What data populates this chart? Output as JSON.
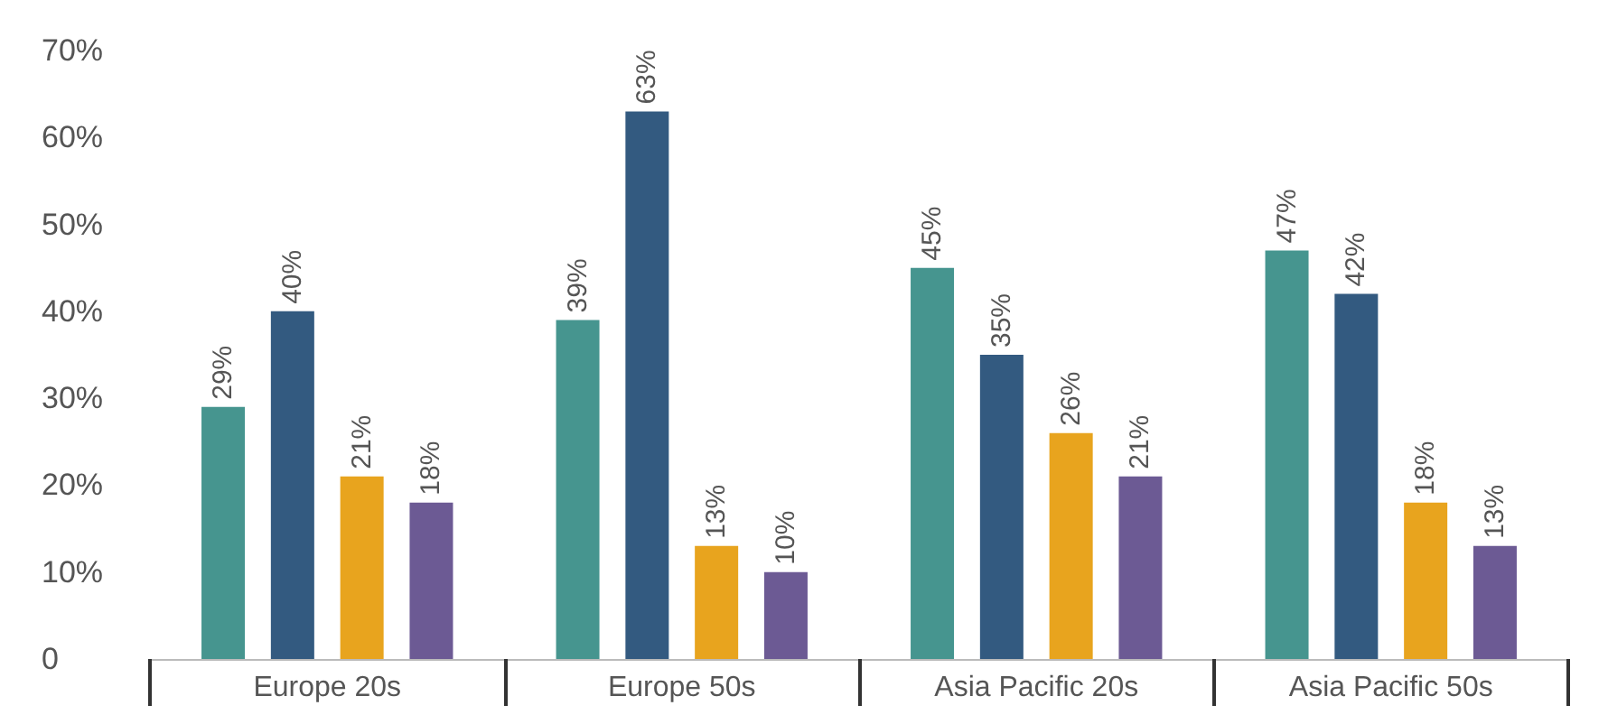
{
  "chart_data": {
    "type": "bar",
    "categories": [
      "Europe 20s",
      "Europe 50s",
      "Asia Pacific 20s",
      "Asia Pacific 50s"
    ],
    "series": [
      {
        "color": "#46958f",
        "values": [
          29,
          39,
          45,
          47
        ],
        "value_labels": [
          "29%",
          "39%",
          "45%",
          "47%"
        ]
      },
      {
        "color": "#335a80",
        "values": [
          40,
          63,
          35,
          42
        ],
        "value_labels": [
          "40%",
          "63%",
          "35%",
          "42%"
        ]
      },
      {
        "color": "#e8a41e",
        "values": [
          21,
          13,
          26,
          18
        ],
        "value_labels": [
          "21%",
          "13%",
          "26%",
          "18%"
        ]
      },
      {
        "color": "#6c5a94",
        "values": [
          18,
          10,
          21,
          13
        ],
        "value_labels": [
          "18%",
          "10%",
          "21%",
          "13%"
        ]
      }
    ],
    "ylim": [
      0,
      70
    ],
    "yticks": [
      {
        "value": 0,
        "label": "0"
      },
      {
        "value": 10,
        "label": "10%"
      },
      {
        "value": 20,
        "label": "20%"
      },
      {
        "value": 30,
        "label": "30%"
      },
      {
        "value": 40,
        "label": "40%"
      },
      {
        "value": 50,
        "label": "50%"
      },
      {
        "value": 60,
        "label": "60%"
      },
      {
        "value": 70,
        "label": "70%"
      }
    ],
    "grid": false
  }
}
